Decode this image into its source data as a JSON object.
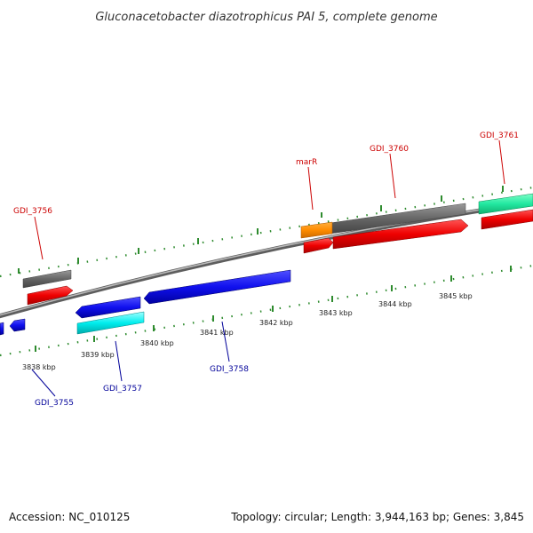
{
  "title": "Gluconacetobacter diazotrophicus PAI 5, complete genome",
  "footer": {
    "accession": "Accession: NC_010125",
    "summary": "Topology: circular; Length: 3,944,163 bp; Genes: 3,845"
  },
  "colors": {
    "backbone": "#888888",
    "tick": "#2e8b2e",
    "forward_label": "#cc0000",
    "reverse_label": "#000099"
  },
  "tick_labels": {
    "t3838": "3838 kbp",
    "t3839": "3839 kbp",
    "t3840": "3840 kbp",
    "t3841": "3841 kbp",
    "t3842": "3842 kbp",
    "t3843": "3843 kbp",
    "t3844": "3844 kbp",
    "t3845": "3845 kbp"
  },
  "gene_labels": {
    "gdi3756": "GDI_3756",
    "marR": "marR",
    "gdi3760": "GDI_3760",
    "gdi3761": "GDI_3761",
    "gdi3755": "GDI_3755",
    "gdi3757": "GDI_3757",
    "gdi3758": "GDI_3758"
  }
}
